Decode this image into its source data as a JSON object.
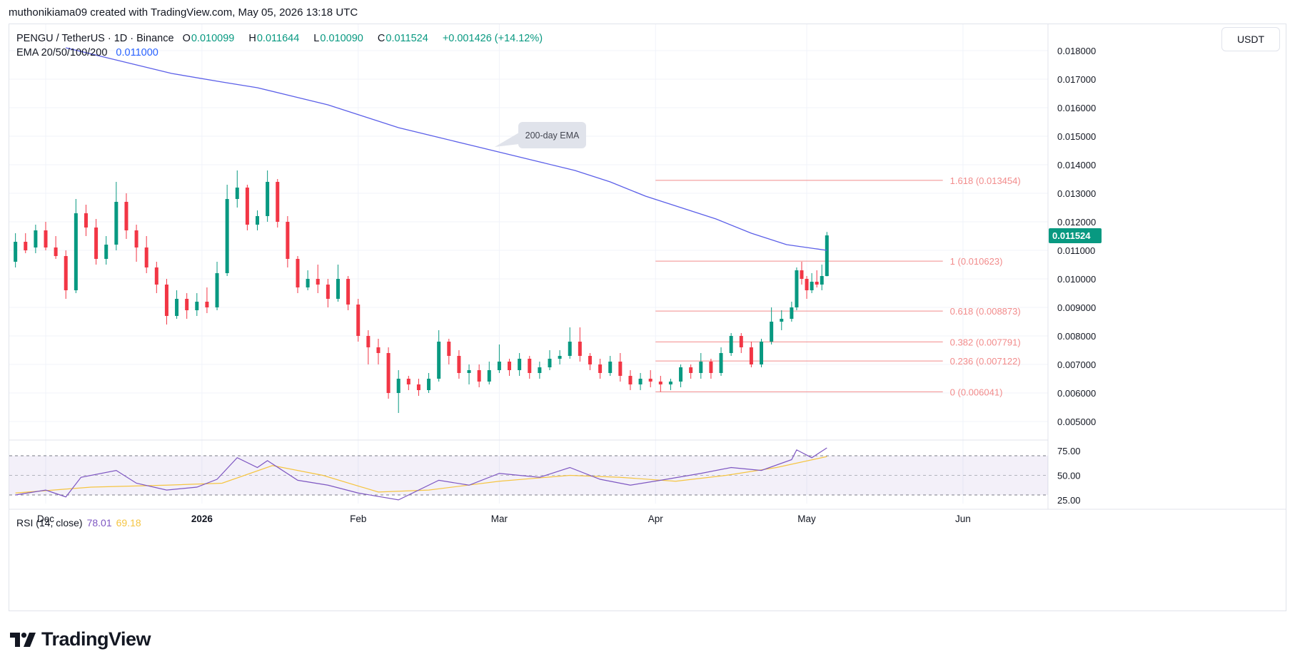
{
  "attribution": "muthonikiama09 created with TradingView.com, May 05, 2026 13:18 UTC",
  "brand": {
    "logo_text": "TradingView"
  },
  "legend": {
    "symbol": "PENGU / TetherUS · 1D · Binance",
    "open_label": "O",
    "open": "0.010099",
    "high_label": "H",
    "high": "0.011644",
    "low_label": "L",
    "low": "0.010090",
    "close_label": "C",
    "close": "0.011524",
    "change": "+0.001426 (+14.12%)",
    "ema_label": "EMA 20/50/100/200",
    "ema_value": "0.011000"
  },
  "currency": "USDT",
  "annotation": "200-day EMA",
  "rsi": {
    "label": "RSI (14, close)",
    "value": "78.01",
    "ma_value": "69.18"
  },
  "colors": {
    "up": "#089981",
    "down": "#f23645",
    "ema": "#5b5fe8",
    "fib": "#f28b8b",
    "rsi": "#7e57c2",
    "rsi_ma": "#f5c542"
  },
  "chart_data": {
    "type": "candlestick",
    "price_axis": {
      "ticks": [
        "0.018000",
        "0.017000",
        "0.016000",
        "0.015000",
        "0.014000",
        "0.013000",
        "0.012000",
        "0.011000",
        "0.010000",
        "0.009000",
        "0.008000",
        "0.007000",
        "0.006000",
        "0.005000"
      ],
      "current_price": "0.011524"
    },
    "rsi_axis": {
      "ticks": [
        "75.00",
        "50.00",
        "25.00"
      ],
      "overbought": 70,
      "oversold": 30
    },
    "time_axis": [
      {
        "label": "Dec",
        "date": "2025-12-01",
        "bold": false
      },
      {
        "label": "2026",
        "date": "2026-01-01",
        "bold": true
      },
      {
        "label": "Feb",
        "date": "2026-02-01",
        "bold": false
      },
      {
        "label": "Mar",
        "date": "2026-03-01",
        "bold": false
      },
      {
        "label": "Apr",
        "date": "2026-04-01",
        "bold": false
      },
      {
        "label": "May",
        "date": "2026-05-01",
        "bold": false
      },
      {
        "label": "Jun",
        "date": "2026-06-01",
        "bold": false
      }
    ],
    "fibonacci": {
      "start_date": "2026-04-01",
      "end_date": "2026-05-28",
      "levels": [
        {
          "ratio": "1.618",
          "price": 0.013454,
          "label": "1.618 (0.013454)"
        },
        {
          "ratio": "1",
          "price": 0.010623,
          "label": "1 (0.010623)"
        },
        {
          "ratio": "0.618",
          "price": 0.008873,
          "label": "0.618 (0.008873)"
        },
        {
          "ratio": "0.382",
          "price": 0.007791,
          "label": "0.382 (0.007791)"
        },
        {
          "ratio": "0.236",
          "price": 0.007122,
          "label": "0.236 (0.007122)"
        },
        {
          "ratio": "0",
          "price": 0.006041,
          "label": "0 (0.006041)"
        }
      ]
    },
    "ema200": [
      {
        "date": "2025-12-05",
        "value": 0.0181
      },
      {
        "date": "2025-12-12",
        "value": 0.0178
      },
      {
        "date": "2025-12-19",
        "value": 0.0175
      },
      {
        "date": "2025-12-26",
        "value": 0.0172
      },
      {
        "date": "2026-01-05",
        "value": 0.0169
      },
      {
        "date": "2026-01-12",
        "value": 0.0167
      },
      {
        "date": "2026-01-19",
        "value": 0.0164
      },
      {
        "date": "2026-01-26",
        "value": 0.0161
      },
      {
        "date": "2026-02-02",
        "value": 0.0157
      },
      {
        "date": "2026-02-09",
        "value": 0.0153
      },
      {
        "date": "2026-02-16",
        "value": 0.015
      },
      {
        "date": "2026-02-23",
        "value": 0.0147
      },
      {
        "date": "2026-03-02",
        "value": 0.0144
      },
      {
        "date": "2026-03-09",
        "value": 0.0141
      },
      {
        "date": "2026-03-16",
        "value": 0.0138
      },
      {
        "date": "2026-03-23",
        "value": 0.0134
      },
      {
        "date": "2026-03-30",
        "value": 0.0129
      },
      {
        "date": "2026-04-06",
        "value": 0.0125
      },
      {
        "date": "2026-04-13",
        "value": 0.0121
      },
      {
        "date": "2026-04-20",
        "value": 0.0116
      },
      {
        "date": "2026-04-27",
        "value": 0.0112
      },
      {
        "date": "2026-05-05",
        "value": 0.011
      }
    ],
    "candles": [
      {
        "date": "2025-11-25",
        "o": 0.0106,
        "h": 0.0116,
        "l": 0.0104,
        "c": 0.0113
      },
      {
        "date": "2025-11-27",
        "o": 0.0113,
        "h": 0.0116,
        "l": 0.0109,
        "c": 0.011
      },
      {
        "date": "2025-11-29",
        "o": 0.0111,
        "h": 0.0119,
        "l": 0.0109,
        "c": 0.0117
      },
      {
        "date": "2025-12-01",
        "o": 0.0117,
        "h": 0.012,
        "l": 0.011,
        "c": 0.0111
      },
      {
        "date": "2025-12-03",
        "o": 0.0111,
        "h": 0.0115,
        "l": 0.0107,
        "c": 0.0108
      },
      {
        "date": "2025-12-05",
        "o": 0.0108,
        "h": 0.011,
        "l": 0.0093,
        "c": 0.0096
      },
      {
        "date": "2025-12-07",
        "o": 0.0096,
        "h": 0.0128,
        "l": 0.0095,
        "c": 0.0123
      },
      {
        "date": "2025-12-09",
        "o": 0.0123,
        "h": 0.0126,
        "l": 0.0115,
        "c": 0.0118
      },
      {
        "date": "2025-12-11",
        "o": 0.0118,
        "h": 0.0121,
        "l": 0.0105,
        "c": 0.0107
      },
      {
        "date": "2025-12-13",
        "o": 0.0107,
        "h": 0.0115,
        "l": 0.0105,
        "c": 0.0112
      },
      {
        "date": "2025-12-15",
        "o": 0.0112,
        "h": 0.0134,
        "l": 0.011,
        "c": 0.0127
      },
      {
        "date": "2025-12-17",
        "o": 0.0127,
        "h": 0.013,
        "l": 0.0114,
        "c": 0.0117
      },
      {
        "date": "2025-12-19",
        "o": 0.0117,
        "h": 0.0119,
        "l": 0.0106,
        "c": 0.0111
      },
      {
        "date": "2025-12-21",
        "o": 0.0111,
        "h": 0.0115,
        "l": 0.0102,
        "c": 0.0104
      },
      {
        "date": "2025-12-23",
        "o": 0.0104,
        "h": 0.0106,
        "l": 0.0095,
        "c": 0.0098
      },
      {
        "date": "2025-12-25",
        "o": 0.0098,
        "h": 0.01,
        "l": 0.0084,
        "c": 0.0087
      },
      {
        "date": "2025-12-27",
        "o": 0.0087,
        "h": 0.0096,
        "l": 0.0086,
        "c": 0.0093
      },
      {
        "date": "2025-12-29",
        "o": 0.0093,
        "h": 0.0095,
        "l": 0.0086,
        "c": 0.0089
      },
      {
        "date": "2025-12-31",
        "o": 0.0089,
        "h": 0.0095,
        "l": 0.0087,
        "c": 0.0092
      },
      {
        "date": "2026-01-02",
        "o": 0.0092,
        "h": 0.0097,
        "l": 0.0088,
        "c": 0.009
      },
      {
        "date": "2026-01-04",
        "o": 0.009,
        "h": 0.0106,
        "l": 0.0089,
        "c": 0.0102
      },
      {
        "date": "2026-01-06",
        "o": 0.0102,
        "h": 0.0133,
        "l": 0.0101,
        "c": 0.0128
      },
      {
        "date": "2026-01-08",
        "o": 0.0128,
        "h": 0.0138,
        "l": 0.0125,
        "c": 0.0132
      },
      {
        "date": "2026-01-10",
        "o": 0.0132,
        "h": 0.0133,
        "l": 0.0117,
        "c": 0.0119
      },
      {
        "date": "2026-01-12",
        "o": 0.0119,
        "h": 0.0124,
        "l": 0.0117,
        "c": 0.0122
      },
      {
        "date": "2026-01-14",
        "o": 0.0122,
        "h": 0.0138,
        "l": 0.012,
        "c": 0.0134
      },
      {
        "date": "2026-01-16",
        "o": 0.0134,
        "h": 0.0135,
        "l": 0.0118,
        "c": 0.012
      },
      {
        "date": "2026-01-18",
        "o": 0.012,
        "h": 0.0122,
        "l": 0.0104,
        "c": 0.0107
      },
      {
        "date": "2026-01-20",
        "o": 0.0107,
        "h": 0.0108,
        "l": 0.0095,
        "c": 0.0097
      },
      {
        "date": "2026-01-22",
        "o": 0.0097,
        "h": 0.0103,
        "l": 0.0096,
        "c": 0.01
      },
      {
        "date": "2026-01-24",
        "o": 0.01,
        "h": 0.0105,
        "l": 0.0095,
        "c": 0.0098
      },
      {
        "date": "2026-01-26",
        "o": 0.0098,
        "h": 0.01,
        "l": 0.009,
        "c": 0.0093
      },
      {
        "date": "2026-01-28",
        "o": 0.0093,
        "h": 0.0105,
        "l": 0.0092,
        "c": 0.01
      },
      {
        "date": "2026-01-30",
        "o": 0.01,
        "h": 0.0101,
        "l": 0.0089,
        "c": 0.0091
      },
      {
        "date": "2026-02-01",
        "o": 0.0091,
        "h": 0.0093,
        "l": 0.0078,
        "c": 0.008
      },
      {
        "date": "2026-02-03",
        "o": 0.008,
        "h": 0.0082,
        "l": 0.007,
        "c": 0.0076
      },
      {
        "date": "2026-02-05",
        "o": 0.0076,
        "h": 0.0079,
        "l": 0.007,
        "c": 0.0074
      },
      {
        "date": "2026-02-07",
        "o": 0.0074,
        "h": 0.0076,
        "l": 0.0058,
        "c": 0.006
      },
      {
        "date": "2026-02-09",
        "o": 0.006,
        "h": 0.0068,
        "l": 0.0053,
        "c": 0.0065
      },
      {
        "date": "2026-02-11",
        "o": 0.0065,
        "h": 0.0066,
        "l": 0.0061,
        "c": 0.0063
      },
      {
        "date": "2026-02-13",
        "o": 0.0063,
        "h": 0.0065,
        "l": 0.0059,
        "c": 0.0061
      },
      {
        "date": "2026-02-15",
        "o": 0.0061,
        "h": 0.0067,
        "l": 0.006,
        "c": 0.0065
      },
      {
        "date": "2026-02-17",
        "o": 0.0065,
        "h": 0.0082,
        "l": 0.0064,
        "c": 0.0078
      },
      {
        "date": "2026-02-19",
        "o": 0.0078,
        "h": 0.0079,
        "l": 0.007,
        "c": 0.0073
      },
      {
        "date": "2026-02-21",
        "o": 0.0073,
        "h": 0.0075,
        "l": 0.0065,
        "c": 0.0067
      },
      {
        "date": "2026-02-23",
        "o": 0.0067,
        "h": 0.007,
        "l": 0.0063,
        "c": 0.0068
      },
      {
        "date": "2026-02-25",
        "o": 0.0068,
        "h": 0.007,
        "l": 0.0062,
        "c": 0.0064
      },
      {
        "date": "2026-02-27",
        "o": 0.0064,
        "h": 0.0071,
        "l": 0.0063,
        "c": 0.0068
      },
      {
        "date": "2026-03-01",
        "o": 0.0068,
        "h": 0.0077,
        "l": 0.0067,
        "c": 0.0071
      },
      {
        "date": "2026-03-03",
        "o": 0.0071,
        "h": 0.0072,
        "l": 0.0066,
        "c": 0.0068
      },
      {
        "date": "2026-03-05",
        "o": 0.0068,
        "h": 0.0074,
        "l": 0.0066,
        "c": 0.0072
      },
      {
        "date": "2026-03-07",
        "o": 0.0072,
        "h": 0.0073,
        "l": 0.0065,
        "c": 0.0067
      },
      {
        "date": "2026-03-09",
        "o": 0.0067,
        "h": 0.0071,
        "l": 0.0065,
        "c": 0.0069
      },
      {
        "date": "2026-03-11",
        "o": 0.0069,
        "h": 0.0075,
        "l": 0.0068,
        "c": 0.0072
      },
      {
        "date": "2026-03-13",
        "o": 0.0072,
        "h": 0.0075,
        "l": 0.007,
        "c": 0.0073
      },
      {
        "date": "2026-03-15",
        "o": 0.0073,
        "h": 0.0083,
        "l": 0.0072,
        "c": 0.0078
      },
      {
        "date": "2026-03-17",
        "o": 0.0078,
        "h": 0.0083,
        "l": 0.0071,
        "c": 0.0073
      },
      {
        "date": "2026-03-19",
        "o": 0.0073,
        "h": 0.0074,
        "l": 0.0068,
        "c": 0.007
      },
      {
        "date": "2026-03-21",
        "o": 0.007,
        "h": 0.0072,
        "l": 0.0065,
        "c": 0.0067
      },
      {
        "date": "2026-03-23",
        "o": 0.0067,
        "h": 0.0073,
        "l": 0.0066,
        "c": 0.0071
      },
      {
        "date": "2026-03-25",
        "o": 0.0071,
        "h": 0.0074,
        "l": 0.0064,
        "c": 0.0066
      },
      {
        "date": "2026-03-27",
        "o": 0.0066,
        "h": 0.0068,
        "l": 0.0061,
        "c": 0.0063
      },
      {
        "date": "2026-03-29",
        "o": 0.0063,
        "h": 0.0067,
        "l": 0.0061,
        "c": 0.0065
      },
      {
        "date": "2026-03-31",
        "o": 0.0065,
        "h": 0.0068,
        "l": 0.0062,
        "c": 0.0064
      },
      {
        "date": "2026-04-02",
        "o": 0.0064,
        "h": 0.0066,
        "l": 0.00604,
        "c": 0.0063
      },
      {
        "date": "2026-04-04",
        "o": 0.0063,
        "h": 0.0065,
        "l": 0.0061,
        "c": 0.0064
      },
      {
        "date": "2026-04-06",
        "o": 0.0064,
        "h": 0.007,
        "l": 0.0062,
        "c": 0.0069
      },
      {
        "date": "2026-04-08",
        "o": 0.0069,
        "h": 0.007,
        "l": 0.0065,
        "c": 0.0067
      },
      {
        "date": "2026-04-10",
        "o": 0.0067,
        "h": 0.0074,
        "l": 0.0065,
        "c": 0.0071
      },
      {
        "date": "2026-04-12",
        "o": 0.0071,
        "h": 0.0072,
        "l": 0.0065,
        "c": 0.0067
      },
      {
        "date": "2026-04-14",
        "o": 0.0067,
        "h": 0.0076,
        "l": 0.0066,
        "c": 0.0074
      },
      {
        "date": "2026-04-16",
        "o": 0.0074,
        "h": 0.0081,
        "l": 0.0073,
        "c": 0.008
      },
      {
        "date": "2026-04-18",
        "o": 0.008,
        "h": 0.0081,
        "l": 0.0074,
        "c": 0.0076
      },
      {
        "date": "2026-04-20",
        "o": 0.0076,
        "h": 0.0078,
        "l": 0.0069,
        "c": 0.007
      },
      {
        "date": "2026-04-22",
        "o": 0.007,
        "h": 0.0079,
        "l": 0.0069,
        "c": 0.0078
      },
      {
        "date": "2026-04-24",
        "o": 0.0078,
        "h": 0.009,
        "l": 0.0077,
        "c": 0.0085
      },
      {
        "date": "2026-04-26",
        "o": 0.0085,
        "h": 0.0089,
        "l": 0.0082,
        "c": 0.0086
      },
      {
        "date": "2026-04-28",
        "o": 0.0086,
        "h": 0.0092,
        "l": 0.0085,
        "c": 0.009
      },
      {
        "date": "2026-04-29",
        "o": 0.009,
        "h": 0.0104,
        "l": 0.0089,
        "c": 0.0103
      },
      {
        "date": "2026-04-30",
        "o": 0.0103,
        "h": 0.0106,
        "l": 0.0098,
        "c": 0.01
      },
      {
        "date": "2026-05-01",
        "o": 0.01,
        "h": 0.0101,
        "l": 0.0093,
        "c": 0.0096
      },
      {
        "date": "2026-05-02",
        "o": 0.0096,
        "h": 0.0102,
        "l": 0.0095,
        "c": 0.0099
      },
      {
        "date": "2026-05-03",
        "o": 0.0099,
        "h": 0.0103,
        "l": 0.0097,
        "c": 0.0098
      },
      {
        "date": "2026-05-04",
        "o": 0.0098,
        "h": 0.0105,
        "l": 0.0096,
        "c": 0.0101
      },
      {
        "date": "2026-05-05",
        "o": 0.010099,
        "h": 0.011644,
        "l": 0.01009,
        "c": 0.011524
      }
    ],
    "rsi_series": [
      {
        "date": "2025-11-25",
        "value": 30
      },
      {
        "date": "2025-12-01",
        "value": 35
      },
      {
        "date": "2025-12-05",
        "value": 28
      },
      {
        "date": "2025-12-08",
        "value": 48
      },
      {
        "date": "2025-12-15",
        "value": 55
      },
      {
        "date": "2025-12-19",
        "value": 42
      },
      {
        "date": "2025-12-25",
        "value": 35
      },
      {
        "date": "2025-12-31",
        "value": 38
      },
      {
        "date": "2026-01-04",
        "value": 46
      },
      {
        "date": "2026-01-08",
        "value": 68
      },
      {
        "date": "2026-01-12",
        "value": 58
      },
      {
        "date": "2026-01-14",
        "value": 65
      },
      {
        "date": "2026-01-20",
        "value": 45
      },
      {
        "date": "2026-01-26",
        "value": 40
      },
      {
        "date": "2026-02-01",
        "value": 32
      },
      {
        "date": "2026-02-09",
        "value": 25
      },
      {
        "date": "2026-02-17",
        "value": 45
      },
      {
        "date": "2026-02-23",
        "value": 40
      },
      {
        "date": "2026-03-01",
        "value": 52
      },
      {
        "date": "2026-03-09",
        "value": 48
      },
      {
        "date": "2026-03-15",
        "value": 58
      },
      {
        "date": "2026-03-21",
        "value": 46
      },
      {
        "date": "2026-03-27",
        "value": 40
      },
      {
        "date": "2026-04-02",
        "value": 45
      },
      {
        "date": "2026-04-10",
        "value": 52
      },
      {
        "date": "2026-04-16",
        "value": 58
      },
      {
        "date": "2026-04-22",
        "value": 55
      },
      {
        "date": "2026-04-28",
        "value": 66
      },
      {
        "date": "2026-04-29",
        "value": 76
      },
      {
        "date": "2026-05-02",
        "value": 68
      },
      {
        "date": "2026-05-05",
        "value": 78.01
      }
    ],
    "rsi_ma_series": [
      {
        "date": "2025-11-25",
        "value": 32
      },
      {
        "date": "2025-12-10",
        "value": 38
      },
      {
        "date": "2025-12-25",
        "value": 40
      },
      {
        "date": "2026-01-05",
        "value": 42
      },
      {
        "date": "2026-01-15",
        "value": 60
      },
      {
        "date": "2026-01-25",
        "value": 50
      },
      {
        "date": "2026-02-05",
        "value": 33
      },
      {
        "date": "2026-02-15",
        "value": 35
      },
      {
        "date": "2026-03-01",
        "value": 44
      },
      {
        "date": "2026-03-15",
        "value": 50
      },
      {
        "date": "2026-03-25",
        "value": 48
      },
      {
        "date": "2026-04-05",
        "value": 44
      },
      {
        "date": "2026-04-15",
        "value": 50
      },
      {
        "date": "2026-04-25",
        "value": 58
      },
      {
        "date": "2026-05-05",
        "value": 69.18
      }
    ]
  }
}
